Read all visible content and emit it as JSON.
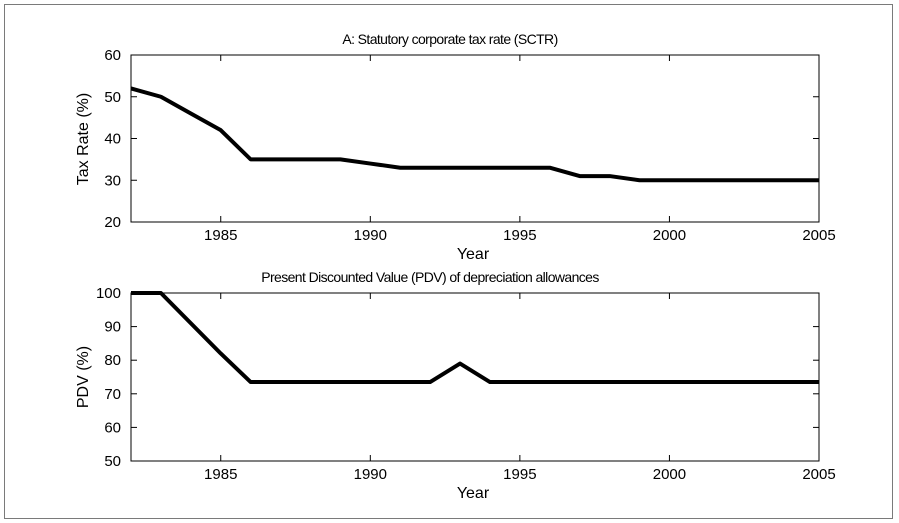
{
  "chart_data": [
    {
      "type": "line",
      "title": "A: Statutory corporate tax rate (SCTR)",
      "xlabel": "Year",
      "ylabel": "Tax Rate (%)",
      "xlim": [
        1982,
        2005
      ],
      "ylim": [
        20,
        60
      ],
      "x_ticks": [
        "1985",
        "1990",
        "1995",
        "2000",
        "2005"
      ],
      "y_ticks": [
        "20",
        "30",
        "40",
        "50",
        "60"
      ],
      "grid": false,
      "line_color": "#000000",
      "series": [
        {
          "x": [
            1982,
            1983,
            1984,
            1985,
            1986,
            1987,
            1988,
            1989,
            1990,
            1991,
            1992,
            1993,
            1994,
            1995,
            1996,
            1997,
            1998,
            1999,
            2000,
            2001,
            2002,
            2003,
            2004,
            2005
          ],
          "y": [
            52,
            50,
            46,
            42,
            35,
            35,
            35,
            35,
            34,
            33,
            33,
            33,
            33,
            33,
            33,
            31,
            31,
            30,
            30,
            30,
            30,
            30,
            30,
            30
          ]
        }
      ]
    },
    {
      "type": "line",
      "title": "Present Discounted Value (PDV) of depreciation allowances",
      "xlabel": "Year",
      "ylabel": "PDV (%)",
      "xlim": [
        1982,
        2005
      ],
      "ylim": [
        50,
        100
      ],
      "x_ticks": [
        "1985",
        "1990",
        "1995",
        "2000",
        "2005"
      ],
      "y_ticks": [
        "50",
        "60",
        "70",
        "80",
        "90",
        "100"
      ],
      "grid": false,
      "line_color": "#000000",
      "series": [
        {
          "x": [
            1982,
            1983,
            1984,
            1985,
            1986,
            1987,
            1988,
            1989,
            1990,
            1991,
            1992,
            1993,
            1994,
            1995,
            1996,
            1997,
            1998,
            1999,
            2000,
            2001,
            2002,
            2003,
            2004,
            2005
          ],
          "y": [
            100,
            100,
            91,
            82,
            73.5,
            73.5,
            73.5,
            73.5,
            73.5,
            73.5,
            73.5,
            79,
            73.5,
            73.5,
            73.5,
            73.5,
            73.5,
            73.5,
            73.5,
            73.5,
            73.5,
            73.5,
            73.5,
            73.5
          ]
        }
      ]
    }
  ]
}
